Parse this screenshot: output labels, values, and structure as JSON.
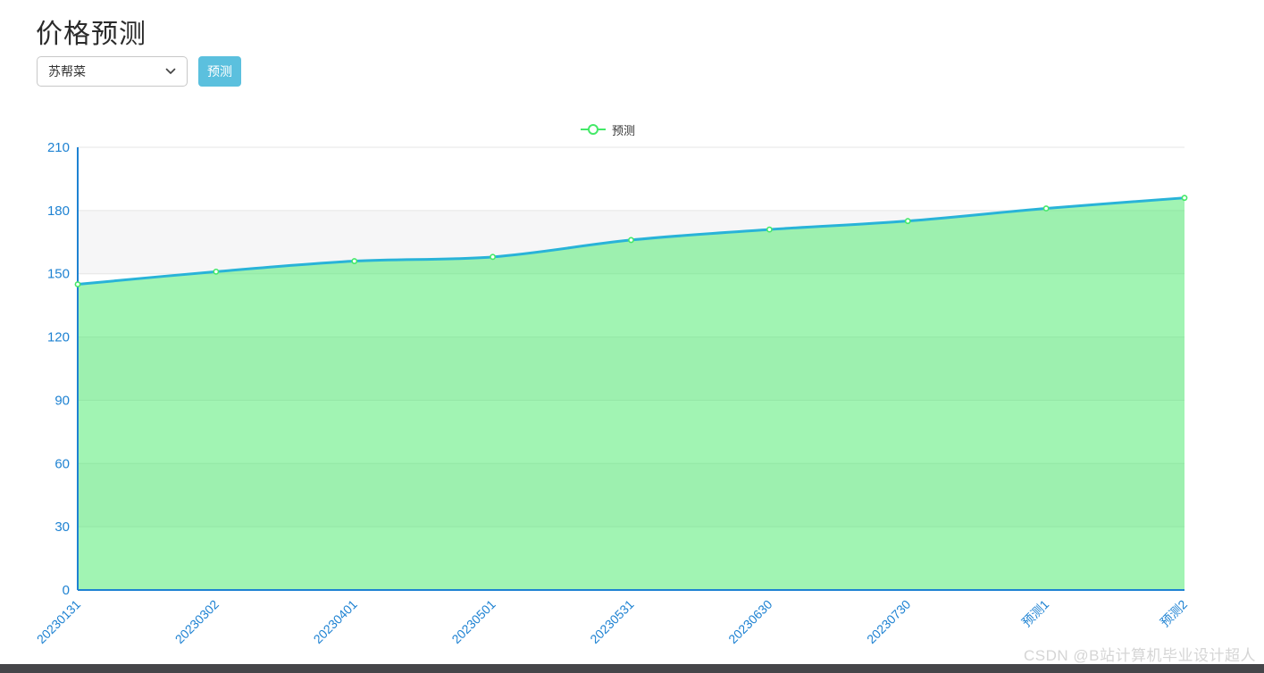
{
  "page": {
    "title": "价格预测",
    "watermark": "CSDN @B站计算机毕业设计超人"
  },
  "controls": {
    "dish_select": {
      "value": "苏帮菜"
    },
    "predict_button_label": "预测"
  },
  "colors": {
    "button_blue": "#5bc0de",
    "axis_blue": "#1e82d2",
    "line_cyan": "#29b3d8",
    "series_green": "#44e968",
    "grid_gray": "#e5e5e5"
  },
  "chart_data": {
    "type": "area",
    "title": "",
    "xlabel": "",
    "ylabel": "",
    "legend": {
      "label": "预测",
      "position": "top-center",
      "marker": "line-circle"
    },
    "categories": [
      "20230131",
      "20230302",
      "20230401",
      "20230501",
      "20230531",
      "20230630",
      "20230730",
      "预测1",
      "预测2"
    ],
    "series": [
      {
        "name": "预测",
        "values": [
          145,
          151,
          156,
          158,
          166,
          171,
          175,
          181,
          186
        ],
        "line_color": "#29b3d8",
        "marker_color": "#44e968",
        "area_color": "rgba(68,233,104,0.5)",
        "smooth": true
      }
    ],
    "ylim": [
      0,
      210
    ],
    "y_ticks": [
      0,
      30,
      60,
      90,
      120,
      150,
      180,
      210
    ],
    "grid": true,
    "x_label_rotation": -45,
    "axis_color": "#1e82d2",
    "split_area_colors": [
      "#ffffff",
      "#f6f6f7"
    ]
  }
}
